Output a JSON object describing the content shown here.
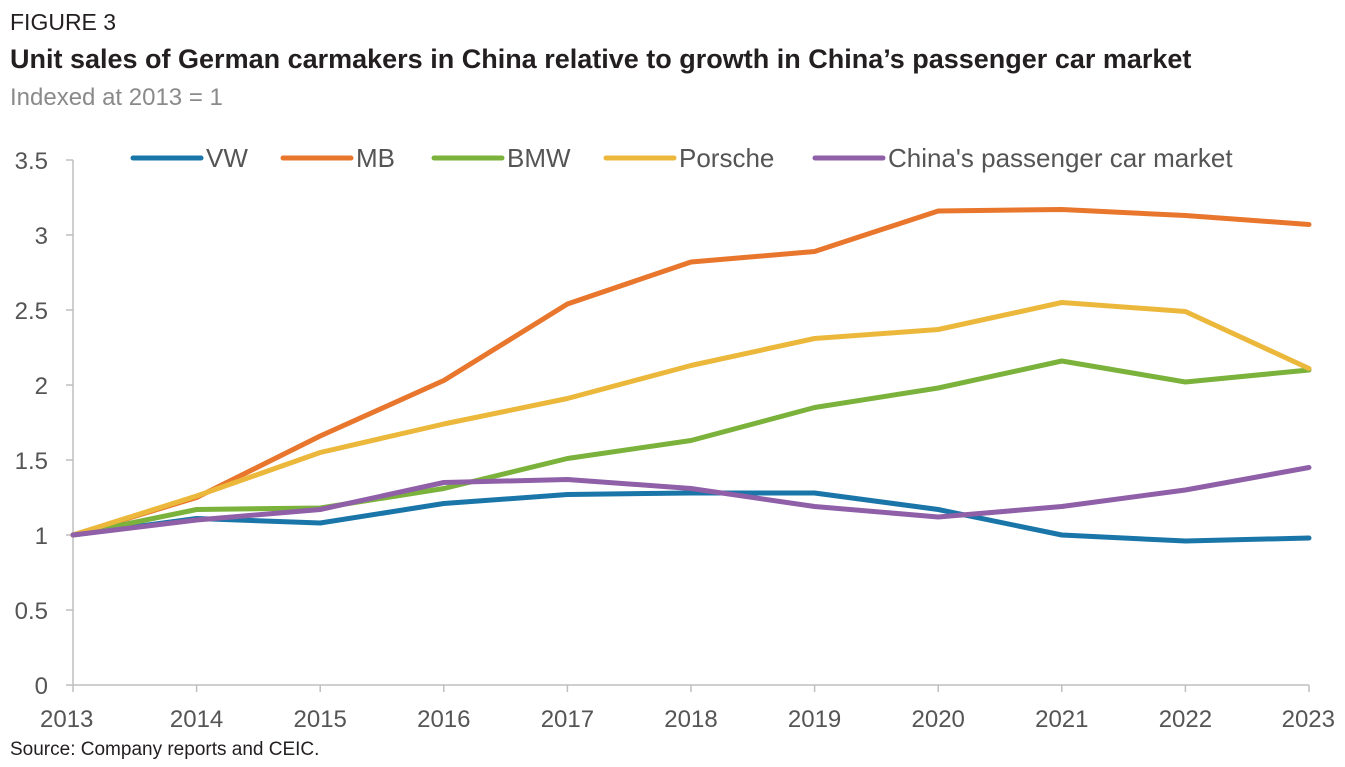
{
  "figure_label": "FIGURE 3",
  "title": "Unit sales of German carmakers in China relative to growth in China’s passenger car market",
  "subtitle": "Indexed at 2013 = 1",
  "source": "Source: Company reports and CEIC.",
  "chart_data": {
    "type": "line",
    "x": [
      "2013",
      "2014",
      "2015",
      "2016",
      "2017",
      "2018",
      "2019",
      "2020",
      "2021",
      "2022",
      "2023"
    ],
    "ylim": [
      0,
      3.5
    ],
    "y_ticks": [
      "0",
      "0.5",
      "1",
      "1.5",
      "2",
      "2.5",
      "3",
      "3.5"
    ],
    "grid": false,
    "legend_position": "top",
    "series": [
      {
        "name": "VW",
        "color": "#1a75a8",
        "values": [
          1.0,
          1.11,
          1.08,
          1.21,
          1.27,
          1.28,
          1.28,
          1.17,
          1.0,
          0.96,
          0.98
        ]
      },
      {
        "name": "MB",
        "color": "#e8762c",
        "values": [
          1.0,
          1.25,
          1.66,
          2.03,
          2.54,
          2.82,
          2.89,
          3.16,
          3.17,
          3.13,
          3.07
        ]
      },
      {
        "name": "BMW",
        "color": "#7ab23b",
        "values": [
          1.0,
          1.17,
          1.18,
          1.31,
          1.51,
          1.63,
          1.85,
          1.98,
          2.16,
          2.02,
          2.1
        ]
      },
      {
        "name": "Porsche",
        "color": "#ebb83b",
        "values": [
          1.0,
          1.26,
          1.55,
          1.74,
          1.91,
          2.13,
          2.31,
          2.37,
          2.55,
          2.49,
          2.11
        ]
      },
      {
        "name": "China's passenger car market",
        "color": "#8f5fa8",
        "values": [
          1.0,
          1.1,
          1.17,
          1.35,
          1.37,
          1.31,
          1.19,
          1.12,
          1.19,
          1.3,
          1.45
        ]
      }
    ]
  }
}
